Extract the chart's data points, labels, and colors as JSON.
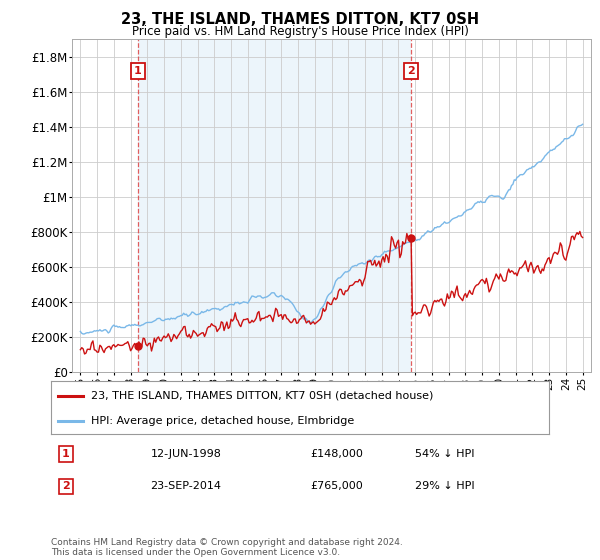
{
  "title": "23, THE ISLAND, THAMES DITTON, KT7 0SH",
  "subtitle": "Price paid vs. HM Land Registry's House Price Index (HPI)",
  "legend_line1": "23, THE ISLAND, THAMES DITTON, KT7 0SH (detached house)",
  "legend_line2": "HPI: Average price, detached house, Elmbridge",
  "annotation1_label": "1",
  "annotation1_date": "12-JUN-1998",
  "annotation1_price": "£148,000",
  "annotation1_hpi": "54% ↓ HPI",
  "annotation2_label": "2",
  "annotation2_date": "23-SEP-2014",
  "annotation2_price": "£765,000",
  "annotation2_hpi": "29% ↓ HPI",
  "footer": "Contains HM Land Registry data © Crown copyright and database right 2024.\nThis data is licensed under the Open Government Licence v3.0.",
  "hpi_color": "#7ab8e8",
  "hpi_fill_color": "#ddeef8",
  "price_color": "#cc1111",
  "vline_color": "#dd4444",
  "sale1_x": 1998.44,
  "sale1_y": 148000,
  "sale2_x": 2014.72,
  "sale2_y": 765000,
  "ylim_max": 1900000,
  "yticks": [
    0,
    200000,
    400000,
    600000,
    800000,
    1000000,
    1200000,
    1400000,
    1600000,
    1800000
  ],
  "xmin": 1994.5,
  "xmax": 2025.5,
  "background_color": "#ffffff",
  "grid_color": "#cccccc"
}
